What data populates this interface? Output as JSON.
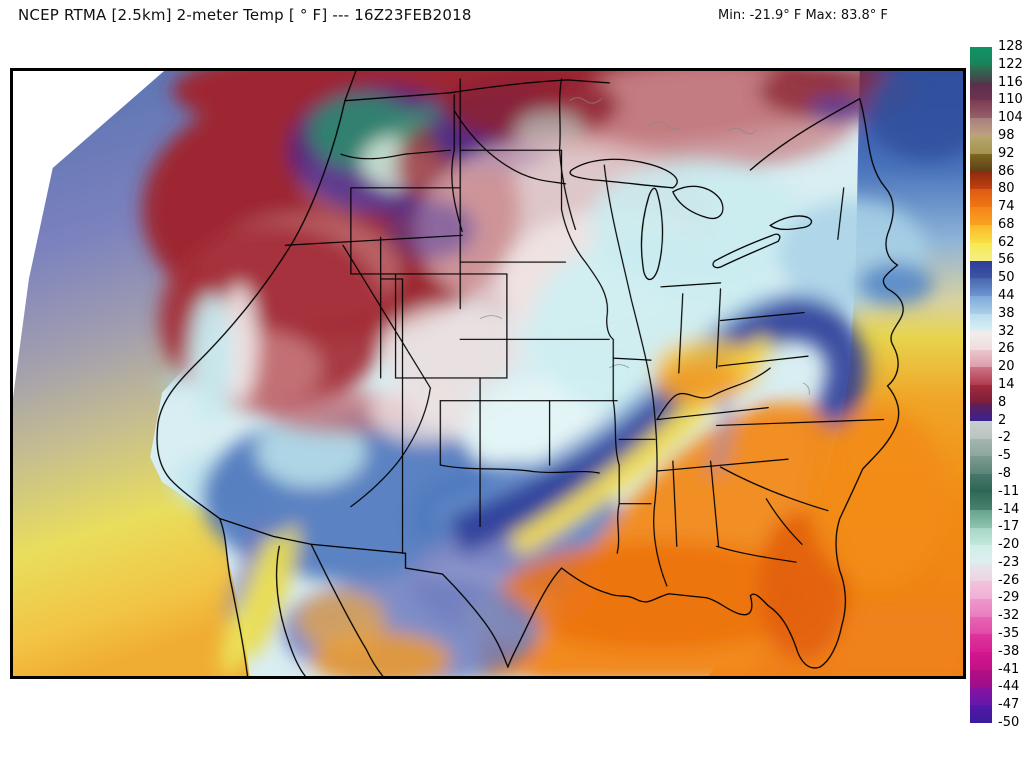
{
  "header": {
    "title": "NCEP RTMA [2.5km] 2-meter Temp [ ° F]  --- 16Z23FEB2018",
    "stats": "Min: -21.9° F Max: 83.8° F"
  },
  "colorbar": {
    "unit": "°F",
    "ticks": [
      128,
      122,
      116,
      110,
      104,
      98,
      92,
      86,
      80,
      74,
      68,
      62,
      56,
      50,
      44,
      38,
      32,
      26,
      20,
      14,
      8,
      2,
      -2,
      -5,
      -8,
      -11,
      -14,
      -17,
      -20,
      -23,
      -26,
      -29,
      -32,
      -35,
      -38,
      -41,
      -44,
      -47,
      -50
    ],
    "segments": [
      {
        "from": "#109464",
        "to": "#18835c"
      },
      {
        "from": "#257a52",
        "to": "#4d3b4a"
      },
      {
        "from": "#5c2c4e",
        "to": "#6e3450"
      },
      {
        "from": "#7c3b52",
        "to": "#97606a"
      },
      {
        "from": "#a87f7d",
        "to": "#bfa183"
      },
      {
        "from": "#b8a66f",
        "to": "#a3924f"
      },
      {
        "from": "#7d671f",
        "to": "#5d3f17"
      },
      {
        "from": "#8f2a0f",
        "to": "#c2410f"
      },
      {
        "from": "#dd5a15",
        "to": "#f07713"
      },
      {
        "from": "#f5841a",
        "to": "#f9a21f"
      },
      {
        "from": "#fbb827",
        "to": "#fade45"
      },
      {
        "from": "#f7e94e",
        "to": "#f5ef86"
      },
      {
        "from": "#2e3d97",
        "to": "#3d55a6"
      },
      {
        "from": "#4765af",
        "to": "#6f95cf"
      },
      {
        "from": "#7fa9da",
        "to": "#a9cfe8"
      },
      {
        "from": "#b9dded",
        "to": "#dff1f4"
      },
      {
        "from": "#f2eeec",
        "to": "#f0dcdc"
      },
      {
        "from": "#ecc6cc",
        "to": "#dd9dab"
      },
      {
        "from": "#cd7488",
        "to": "#b03b4e"
      },
      {
        "from": "#a02a3c",
        "to": "#7c1e3a"
      },
      {
        "from": "#621f52",
        "to": "#3a2193"
      },
      {
        "from": "#c7cfcd",
        "to": "#b9c4c0"
      },
      {
        "from": "#a3b5af",
        "to": "#8da79e"
      },
      {
        "from": "#7e9b90",
        "to": "#5c8577"
      },
      {
        "from": "#47776a",
        "to": "#2d6655"
      },
      {
        "from": "#2f6b59",
        "to": "#49816d"
      },
      {
        "from": "#67a38e",
        "to": "#8ec4ae"
      },
      {
        "from": "#a5d6c5",
        "to": "#c2e8da"
      },
      {
        "from": "#cfeee6",
        "to": "#dfeff0"
      },
      {
        "from": "#e3e7ee",
        "to": "#efd3e2"
      },
      {
        "from": "#f2c4dd",
        "to": "#f0aed4"
      },
      {
        "from": "#ee98cc",
        "to": "#ea7cc0"
      },
      {
        "from": "#e765b4",
        "to": "#e14aa8"
      },
      {
        "from": "#dd349c",
        "to": "#d81f93"
      },
      {
        "from": "#d31690",
        "to": "#c31188"
      },
      {
        "from": "#b20e84",
        "to": "#9c0f8c"
      },
      {
        "from": "#8613a0",
        "to": "#6617ab"
      },
      {
        "from": "#5517a8",
        "to": "#3b1b9d"
      }
    ]
  },
  "map": {
    "type": "temperature-analysis-raster",
    "palette": {
      "cold_interior_west_red": "#9d2630",
      "montana_mountains_teal": "#2f8a6e",
      "arctic_purple": "#3b2a9d",
      "central_plains_pale_cyan": "#d9eef2",
      "warm_sector_orange": "#f28a1a",
      "frontal_band_navy": "#2e3d99",
      "frontal_band_yellow": "#f4dc4c",
      "pacific_ocean_blue": "#5672b2",
      "pacific_south_yellow": "#f0ad33",
      "atlantic_north_blue": "#2b47a3",
      "gulf_orange": "#f0821a",
      "boundary_black": "#000000"
    }
  }
}
